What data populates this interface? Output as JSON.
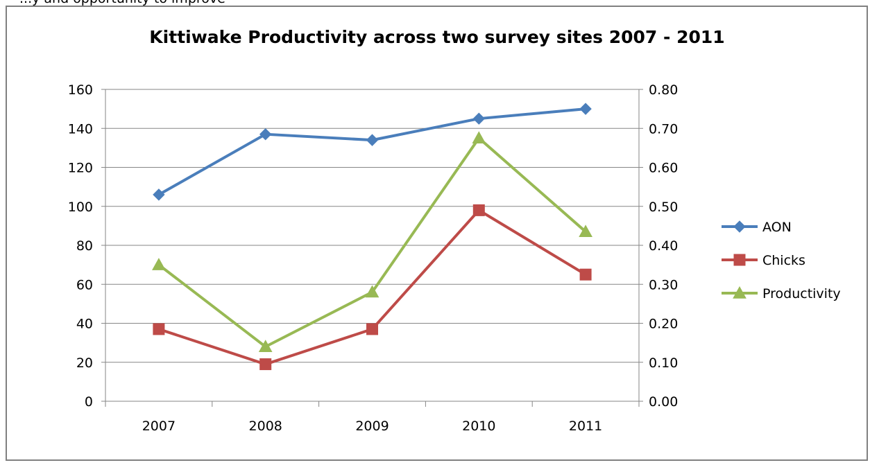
{
  "page": {
    "top_caption": "...y and opportunity to improve"
  },
  "chart_data": {
    "type": "line",
    "title": "Kittiwake Productivity across two survey sites 2007 - 2011",
    "categories": [
      "2007",
      "2008",
      "2009",
      "2010",
      "2011"
    ],
    "y_left": {
      "min": 0,
      "max": 160,
      "step": 20,
      "ticks": [
        "0",
        "20",
        "40",
        "60",
        "80",
        "100",
        "120",
        "140",
        "160"
      ]
    },
    "y_right": {
      "min": 0,
      "max": 0.8,
      "step": 0.1,
      "ticks": [
        "0.00",
        "0.10",
        "0.20",
        "0.30",
        "0.40",
        "0.50",
        "0.60",
        "0.70",
        "0.80"
      ]
    },
    "grid": true,
    "legend_position": "right",
    "series": [
      {
        "name": "AON",
        "axis": "left",
        "color": "#4a7ebb",
        "marker": "diamond",
        "values": [
          106,
          137,
          134,
          145,
          150
        ]
      },
      {
        "name": "Chicks",
        "axis": "left",
        "color": "#be4b48",
        "marker": "square",
        "values": [
          37,
          19,
          37,
          98,
          65
        ]
      },
      {
        "name": "Productivity",
        "axis": "right",
        "color": "#98b954",
        "marker": "triangle",
        "values": [
          0.35,
          0.14,
          0.28,
          0.675,
          0.435
        ]
      }
    ]
  }
}
